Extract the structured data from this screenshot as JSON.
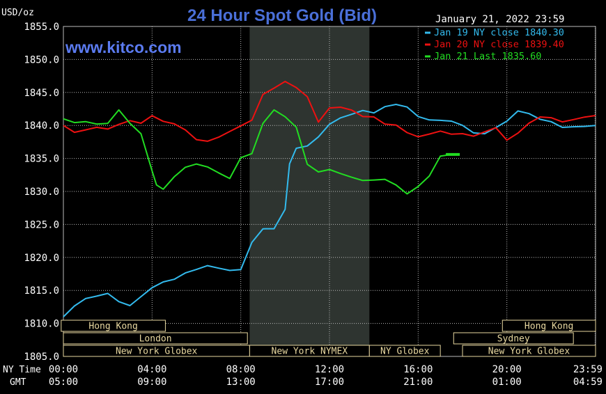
{
  "chart_data": {
    "type": "line",
    "title": "24 Hour Spot Gold (Bid)",
    "watermark": "www.kitco.com",
    "timestamp": "January 21, 2022 23:59",
    "ylabel": "USD/oz",
    "ylim": [
      1805,
      1855
    ],
    "y_ticks": [
      "1855.0",
      "1850.0",
      "1845.0",
      "1840.0",
      "1835.0",
      "1830.0",
      "1825.0",
      "1820.0",
      "1815.0",
      "1810.0",
      "1805.0"
    ],
    "y_tick_values": [
      1855,
      1850,
      1845,
      1840,
      1835,
      1830,
      1825,
      1820,
      1815,
      1810,
      1805
    ],
    "xlim": [
      0,
      24
    ],
    "x_tick_values": [
      0,
      4,
      8,
      12,
      16,
      20,
      23.98
    ],
    "x_row_labels": {
      "ny": "NY Time",
      "gmt": "GMT"
    },
    "x_ticks_ny": [
      "00:00",
      "04:00",
      "08:00",
      "12:00",
      "16:00",
      "20:00",
      "23:59"
    ],
    "x_ticks_gmt": [
      "05:00",
      "09:00",
      "13:00",
      "17:00",
      "21:00",
      "01:00",
      "04:59"
    ],
    "highlight_range": [
      8.4,
      13.8
    ],
    "colors": {
      "background": "#000000",
      "grid": "#bbbbbb",
      "title": "#4a6fd8",
      "watermark": "#5b7bf0",
      "text": "#ffffff",
      "highlight": "#2e3430",
      "session_fill": "#000000",
      "session_border": "#e8d8a0",
      "session_text": "#e8d8a0"
    },
    "sessions": [
      {
        "label": "Hong Kong",
        "start": -0.1,
        "end": 4.6,
        "row": 0
      },
      {
        "label": "Hong Kong",
        "start": 19.8,
        "end": 24.0,
        "row": 0
      },
      {
        "label": "London",
        "start": 0.0,
        "end": 8.3,
        "row": 1
      },
      {
        "label": "Sydney",
        "start": 17.6,
        "end": 23.0,
        "row": 1
      },
      {
        "label": "New York Globex",
        "start": 0.0,
        "end": 8.4,
        "row": 2
      },
      {
        "label": "New York NYMEX",
        "start": 8.4,
        "end": 13.8,
        "row": 2
      },
      {
        "label": "NY Globex",
        "start": 13.8,
        "end": 17.0,
        "row": 2
      },
      {
        "label": "New York Globex",
        "start": 18.0,
        "end": 24.0,
        "row": 2
      }
    ],
    "series": [
      {
        "name": "Jan 19 NY close 1840.30",
        "color": "#33bbee",
        "x": [
          0,
          0.5,
          1,
          1.5,
          2,
          2.5,
          3,
          3.5,
          4,
          4.5,
          5,
          5.5,
          6,
          6.5,
          7,
          7.5,
          8,
          8.5,
          9,
          9.5,
          10,
          10.2,
          10.5,
          11,
          11.5,
          12,
          12.5,
          13,
          13.5,
          14,
          14.5,
          15,
          15.5,
          16,
          16.5,
          17,
          17.5,
          18,
          18.5,
          19,
          19.5,
          20,
          20.5,
          21,
          21.5,
          22,
          22.5,
          23,
          23.5,
          24
        ],
        "values": [
          1811,
          1812.5,
          1813.5,
          1813.8,
          1814.2,
          1813,
          1812.5,
          1814,
          1815.5,
          1816.5,
          1817,
          1818,
          1818.5,
          1819,
          1818.5,
          1818,
          1818,
          1822,
          1824,
          1824,
          1827,
          1834,
          1836.5,
          1837,
          1838.5,
          1840.5,
          1841.5,
          1842,
          1842.5,
          1842,
          1842.8,
          1843,
          1842.5,
          1841,
          1840.5,
          1840.5,
          1840.5,
          1840,
          1839,
          1839,
          1840,
          1841,
          1842.5,
          1842,
          1841,
          1840.5,
          1839.5,
          1839.5,
          1839.5,
          1840
        ]
      },
      {
        "name": "Jan 20 NY close 1839.40",
        "color": "#ee1111",
        "x": [
          0,
          0.5,
          1,
          1.5,
          2,
          2.5,
          3,
          3.5,
          4,
          4.5,
          5,
          5.5,
          6,
          6.5,
          7,
          7.5,
          8,
          8.5,
          9,
          9.5,
          10,
          10.5,
          11,
          11.5,
          12,
          12.5,
          13,
          13.5,
          14,
          14.5,
          15,
          15.5,
          16,
          16.5,
          17,
          17.5,
          18,
          18.5,
          19,
          19.5,
          20,
          20.5,
          21,
          21.5,
          22,
          22.5,
          23,
          23.5,
          24
        ],
        "values": [
          1840,
          1839,
          1839.5,
          1840,
          1839.8,
          1840.5,
          1841,
          1840.5,
          1841.5,
          1840.5,
          1840,
          1839,
          1837.5,
          1837.3,
          1838,
          1839,
          1840,
          1841,
          1845,
          1846,
          1847,
          1846,
          1844.5,
          1840.5,
          1842.5,
          1842.5,
          1842,
          1841,
          1841,
          1840,
          1840,
          1839,
          1838.5,
          1839,
          1839.5,
          1839,
          1839,
          1838.5,
          1839,
          1839.5,
          1837.5,
          1838.5,
          1840,
          1841,
          1841,
          1840.5,
          1841,
          1841.5,
          1841.5
        ]
      },
      {
        "name": "Jan 21 Last 1835.60",
        "color": "#22dd22",
        "x": [
          0,
          0.5,
          1,
          1.5,
          2,
          2.5,
          3,
          3.5,
          4,
          4.2,
          4.5,
          5,
          5.5,
          6,
          6.5,
          7,
          7.5,
          8,
          8.5,
          9,
          9.5,
          10,
          10.5,
          11,
          11.5,
          12,
          12.5,
          13,
          13.5,
          14,
          14.5,
          15,
          15.5,
          16,
          16.5,
          17,
          17.5
        ],
        "values": [
          1841,
          1840.5,
          1840.5,
          1840,
          1840,
          1842,
          1840,
          1838.5,
          1833,
          1831,
          1830.5,
          1832.5,
          1834,
          1834.5,
          1834,
          1833,
          1832,
          1835,
          1835.5,
          1840,
          1842,
          1841,
          1839.5,
          1834,
          1833,
          1833.5,
          1833,
          1832.5,
          1832,
          1832,
          1832,
          1831,
          1829.5,
          1830.5,
          1832,
          1835,
          1835.6
        ]
      }
    ]
  }
}
